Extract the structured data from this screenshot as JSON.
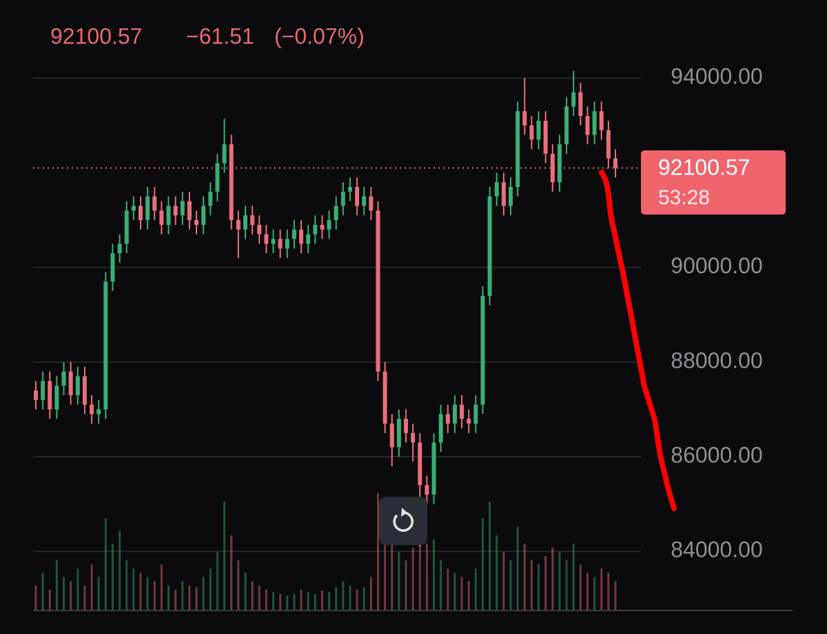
{
  "chart_data": {
    "type": "candlestick",
    "header": {
      "change": "−61.51",
      "change_pct": "(−0.07%)"
    },
    "countdown": "53:28",
    "last_price": 92100.57,
    "colors": {
      "up": "#3aae74",
      "down": "#e8707a",
      "last": "#f0646c"
    },
    "ylim": [
      82750,
      95650
    ],
    "yticks": [
      {
        "value": 84000,
        "label": "84000.00"
      },
      {
        "value": 86000,
        "label": "86000.00"
      },
      {
        "value": 88000,
        "label": "88000.00"
      },
      {
        "value": 90000,
        "label": "90000.00"
      },
      {
        "value": 94000,
        "label": "94000.00"
      }
    ],
    "open": [
      87400,
      87200,
      87600,
      87000,
      87500,
      87800,
      87300,
      87700,
      87100,
      86900,
      87000,
      89700,
      90300,
      90500,
      91200,
      91300,
      91000,
      91500,
      91200,
      90900,
      91300,
      91100,
      91400,
      91000,
      90900,
      91300,
      91600,
      92200,
      92600,
      91000,
      90800,
      91100,
      90900,
      90700,
      90500,
      90600,
      90400,
      90600,
      90800,
      90500,
      90700,
      90900,
      90800,
      91000,
      91300,
      91600,
      91700,
      91300,
      91500,
      91200,
      87800,
      86700,
      86200,
      86800,
      86500,
      86300,
      85400,
      85200,
      86300,
      86900,
      86700,
      87100,
      86800,
      86700,
      87100,
      89400,
      91500,
      91800,
      91300,
      91700,
      93300,
      93000,
      92700,
      93100,
      92400,
      91800,
      92600,
      93400,
      93700,
      93200,
      92800,
      93300,
      92900,
      92300
    ],
    "high": [
      87600,
      87800,
      87800,
      87700,
      88000,
      88000,
      87900,
      87900,
      87300,
      87200,
      89900,
      90500,
      90700,
      91400,
      91500,
      91500,
      91700,
      91700,
      91400,
      91500,
      91500,
      91600,
      91600,
      91200,
      91500,
      91800,
      92400,
      93140,
      92800,
      91200,
      91300,
      91300,
      91100,
      90900,
      90800,
      90800,
      90800,
      91000,
      91000,
      90900,
      91100,
      91100,
      91200,
      91500,
      91800,
      91900,
      91900,
      91700,
      91700,
      91400,
      88000,
      86900,
      87000,
      87000,
      86700,
      86500,
      85600,
      86500,
      87100,
      87100,
      87300,
      87300,
      87000,
      87300,
      89600,
      91700,
      92000,
      92000,
      91900,
      93500,
      94000,
      93200,
      93300,
      93300,
      92600,
      92800,
      93600,
      94150,
      93900,
      93400,
      93500,
      93500,
      93100,
      92500
    ],
    "low": [
      87000,
      87000,
      86800,
      86800,
      87300,
      87100,
      87100,
      86900,
      86700,
      86700,
      86800,
      89500,
      90100,
      90300,
      91000,
      90800,
      90800,
      91000,
      90700,
      90700,
      90900,
      90900,
      90800,
      90700,
      90700,
      91100,
      91400,
      92000,
      90800,
      90200,
      90600,
      90700,
      90500,
      90300,
      90300,
      90200,
      90200,
      90400,
      90300,
      90300,
      90500,
      90600,
      90600,
      90800,
      91100,
      91400,
      91100,
      91100,
      91000,
      87600,
      86500,
      85800,
      86000,
      86300,
      85900,
      84100,
      85000,
      85000,
      86100,
      86500,
      86500,
      86600,
      86500,
      86500,
      86900,
      89200,
      91300,
      91100,
      91100,
      91500,
      92800,
      92500,
      92500,
      92200,
      91600,
      91600,
      92400,
      93200,
      93000,
      92600,
      92600,
      92700,
      92100,
      91900
    ],
    "close": [
      87200,
      87600,
      87000,
      87500,
      87800,
      87300,
      87700,
      87100,
      86900,
      87000,
      89700,
      90300,
      90500,
      91200,
      91300,
      91000,
      91500,
      91200,
      90900,
      91300,
      91100,
      91400,
      91000,
      90900,
      91300,
      91600,
      92200,
      92600,
      91000,
      90800,
      91100,
      90900,
      90700,
      90500,
      90600,
      90400,
      90600,
      90800,
      90500,
      90700,
      90900,
      90800,
      91000,
      91300,
      91600,
      91700,
      91300,
      91500,
      91200,
      87800,
      86700,
      86200,
      86800,
      86500,
      86300,
      85400,
      85200,
      86300,
      86900,
      86700,
      87100,
      86800,
      86700,
      87100,
      89400,
      91500,
      91800,
      91300,
      91700,
      93300,
      93000,
      92700,
      93100,
      92400,
      91800,
      92600,
      93400,
      93700,
      93200,
      92800,
      93300,
      92900,
      92300,
      92100.57
    ],
    "volume": [
      30,
      45,
      25,
      60,
      40,
      35,
      50,
      30,
      55,
      40,
      110,
      80,
      95,
      60,
      50,
      45,
      40,
      35,
      55,
      30,
      25,
      35,
      30,
      28,
      40,
      50,
      70,
      130,
      90,
      60,
      45,
      35,
      30,
      25,
      22,
      20,
      18,
      20,
      25,
      22,
      20,
      24,
      22,
      28,
      35,
      30,
      25,
      28,
      40,
      140,
      120,
      90,
      70,
      60,
      75,
      100,
      80,
      85,
      60,
      50,
      45,
      40,
      35,
      50,
      110,
      130,
      90,
      70,
      60,
      100,
      80,
      60,
      55,
      65,
      75,
      70,
      60,
      80,
      55,
      45,
      40,
      50,
      45,
      35
    ]
  }
}
